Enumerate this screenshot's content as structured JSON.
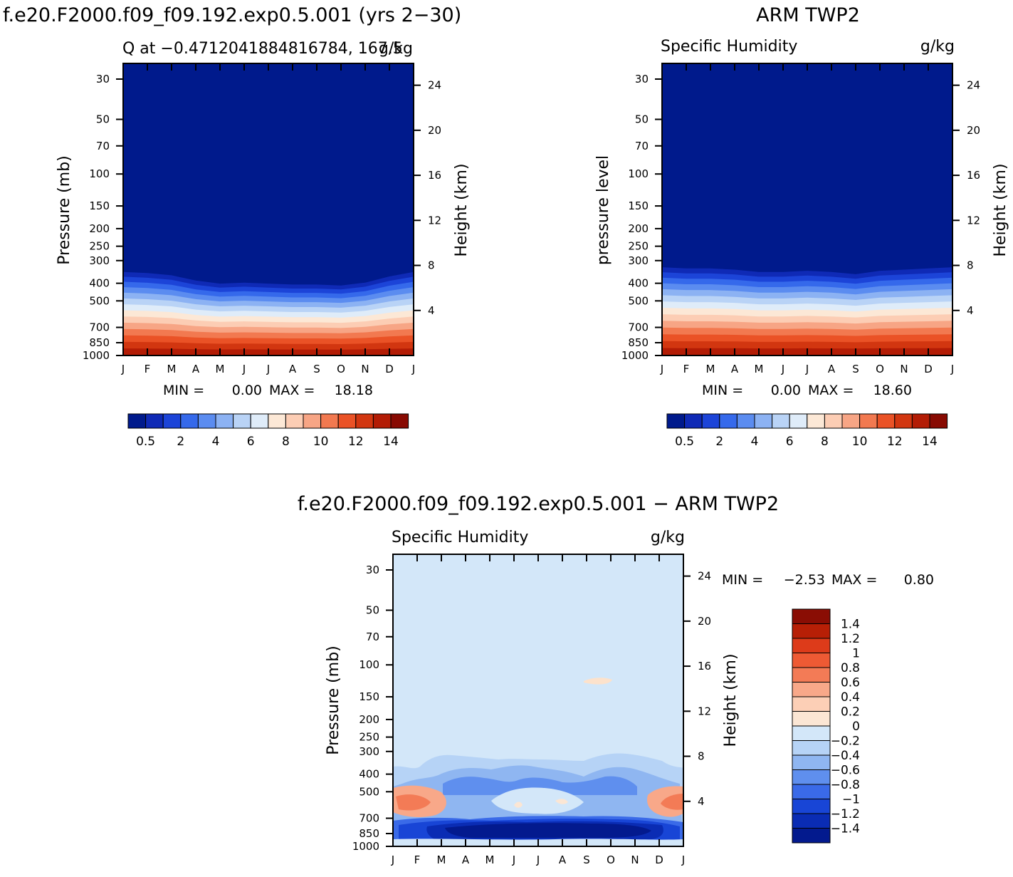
{
  "page": {
    "title_left": "f.e20.F2000.f09_f09.192.exp0.5.001 (yrs 2−30)",
    "title_right": "ARM TWP2",
    "title_bottom": "f.e20.F2000.f09_f09.192.exp0.5.001 − ARM TWP2"
  },
  "colors": {
    "positive": [
      "#fbe6d4",
      "#fccfb6",
      "#f8a889",
      "#f37b56",
      "#ee5a34",
      "#dd3b1a",
      "#b71f06",
      "#8a0d04"
    ],
    "negative": [
      "#d3e7f9",
      "#b6d3f6",
      "#8fb6f1",
      "#5f8fee",
      "#3a6ae8",
      "#1845d6",
      "#0a2cb4",
      "#031a8e"
    ],
    "seq": [
      "#001a8c",
      "#0f2ab6",
      "#1c44d8",
      "#3569eb",
      "#5b8cf0",
      "#8cb2f3",
      "#b9d3f6",
      "#dfecf9",
      "#fce8d6",
      "#fccdb4",
      "#f7a585",
      "#f27950",
      "#ea5226",
      "#d23610",
      "#b31c05",
      "#880a02"
    ]
  },
  "chart_data": [
    {
      "type": "heatmap",
      "subtitle": "Q at −0.4712041884816784, 167.5",
      "units": "g/kg",
      "ylabel": "Pressure (mb)",
      "ylabel_right": "Height (km)",
      "x_ticks": [
        "J",
        "F",
        "M",
        "A",
        "M",
        "J",
        "J",
        "A",
        "S",
        "O",
        "N",
        "D",
        "J"
      ],
      "y_ticks": [
        30,
        50,
        70,
        100,
        150,
        200,
        250,
        300,
        400,
        500,
        700,
        850,
        1000
      ],
      "y_ticks_right": [
        24,
        20,
        16,
        12,
        8,
        4
      ],
      "ylim": [
        30,
        1000
      ],
      "min_label": "MIN =",
      "min_value": "0.00",
      "max_label": "MAX =",
      "max_value": "18.18",
      "colorbar_labels": [
        "0.5",
        "2",
        "4",
        "6",
        "8",
        "10",
        "12",
        "14"
      ],
      "top_level_of_moist_band_mb": [
        330,
        335,
        345,
        370,
        385,
        380,
        385,
        390,
        390,
        395,
        380,
        350,
        330
      ]
    },
    {
      "type": "heatmap",
      "subtitle": "Specific Humidity",
      "units": "g/kg",
      "ylabel": "pressure level",
      "ylabel_right": "Height (km)",
      "x_ticks": [
        "J",
        "F",
        "M",
        "A",
        "M",
        "J",
        "J",
        "A",
        "S",
        "O",
        "N",
        "D",
        "J"
      ],
      "y_ticks": [
        30,
        50,
        70,
        100,
        150,
        200,
        250,
        300,
        400,
        500,
        700,
        850,
        1000
      ],
      "y_ticks_right": [
        24,
        20,
        16,
        12,
        8,
        4
      ],
      "ylim": [
        30,
        1000
      ],
      "min_label": "MIN =",
      "min_value": "0.00",
      "max_label": "MAX =",
      "max_value": "18.60",
      "colorbar_labels": [
        "0.5",
        "2",
        "4",
        "6",
        "8",
        "10",
        "12",
        "14"
      ],
      "top_level_of_moist_band_mb": [
        310,
        315,
        315,
        320,
        330,
        330,
        325,
        330,
        340,
        325,
        320,
        315,
        310
      ]
    },
    {
      "type": "heatmap",
      "subtitle": "Specific Humidity",
      "units": "g/kg",
      "ylabel": "Pressure (mb)",
      "ylabel_right": "Height (km)",
      "x_ticks": [
        "J",
        "F",
        "M",
        "A",
        "M",
        "J",
        "J",
        "A",
        "S",
        "O",
        "N",
        "D",
        "J"
      ],
      "y_ticks": [
        30,
        50,
        70,
        100,
        150,
        200,
        250,
        300,
        400,
        500,
        700,
        850,
        1000
      ],
      "y_ticks_right": [
        24,
        20,
        16,
        12,
        8,
        4
      ],
      "ylim": [
        30,
        1000
      ],
      "min_label": "MIN =",
      "min_value": "−2.53",
      "max_label": "MAX =",
      "max_value": "0.80",
      "colorbar_labels": [
        "1.4",
        "1.2",
        "1",
        "0.8",
        "0.6",
        "0.4",
        "0.2",
        "0",
        "−0.2",
        "−0.4",
        "−0.6",
        "−0.8",
        "−1",
        "−1.2",
        "−1.4"
      ]
    }
  ]
}
